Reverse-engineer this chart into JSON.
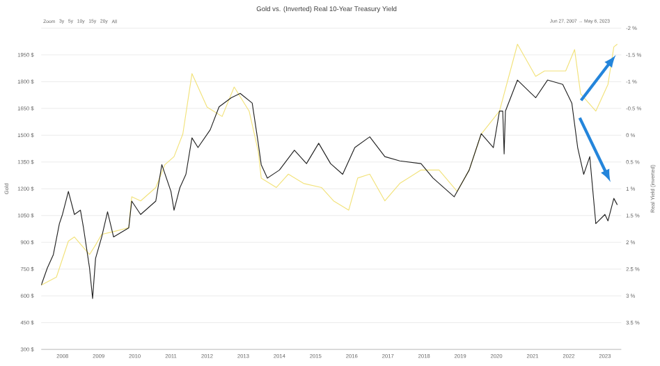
{
  "chart_data": {
    "type": "line",
    "title": "Gold vs. (Inverted) Real 10-Year Treasury Yield",
    "annotations": [
      "Zoom",
      "3y",
      "5y",
      "10y",
      "15y",
      "20y",
      "All",
      "Jun 27, 2007 → May 6, 2023"
    ],
    "ylabel": "Gold",
    "y2label": "Real Yield (inverted)",
    "xlim": [
      "2007-06",
      "2023-06-15"
    ],
    "xticks": [
      "2008",
      "2009",
      "2010",
      "2011",
      "2012",
      "2013",
      "2014",
      "2015",
      "2016",
      "2017",
      "2018",
      "2019",
      "2020",
      "2021",
      "2022",
      "2023"
    ],
    "ylim": [
      300,
      2100
    ],
    "yticks": [
      {
        "value": 300,
        "label": "300 $"
      },
      {
        "value": 450,
        "label": "450 $"
      },
      {
        "value": 600,
        "label": "600 $"
      },
      {
        "value": 750,
        "label": "750 $"
      },
      {
        "value": 900,
        "label": "900 $"
      },
      {
        "value": 1050,
        "label": "1050 $"
      },
      {
        "value": 1200,
        "label": "1200 $"
      },
      {
        "value": 1350,
        "label": "1350 $"
      },
      {
        "value": 1500,
        "label": "1500 $"
      },
      {
        "value": 1650,
        "label": "1650 $"
      },
      {
        "value": 1800,
        "label": "1800 $"
      },
      {
        "value": 1950,
        "label": "1950 $"
      },
      {
        "value": 2100,
        "label": null
      }
    ],
    "y2lim": [
      4,
      -2
    ],
    "y2ticks": [
      {
        "value": -2,
        "label": "-2 %"
      },
      {
        "value": -1.5,
        "label": "-1.5 %"
      },
      {
        "value": -1,
        "label": "-1 %"
      },
      {
        "value": -0.5,
        "label": "-0.5 %"
      },
      {
        "value": 0,
        "label": "0 %"
      },
      {
        "value": 0.5,
        "label": "0.5 %"
      },
      {
        "value": 1,
        "label": "1 %"
      },
      {
        "value": 1.5,
        "label": "1.5 %"
      },
      {
        "value": 2,
        "label": "2 %"
      },
      {
        "value": 2.5,
        "label": "2.5 %"
      },
      {
        "value": 3,
        "label": "3 %"
      },
      {
        "value": 3.5,
        "label": "3.5 %"
      }
    ],
    "grid": "y",
    "marker": "none",
    "line_style": "solid",
    "series": [
      {
        "color": "#f2e27a",
        "axis": "y",
        "x": [
          "2007-06",
          "2007-11",
          "2008-03",
          "2008-05",
          "2008-08",
          "2008-10",
          "2008-12",
          "2009-02",
          "2009-06",
          "2009-11",
          "2009-12",
          "2010-03",
          "2010-08",
          "2010-11",
          "2011-02",
          "2011-05",
          "2011-08",
          "2011-11",
          "2012-01",
          "2012-06",
          "2012-10",
          "2013-03",
          "2013-06",
          "2013-07",
          "2013-12",
          "2014-04",
          "2014-09",
          "2015-03",
          "2015-07",
          "2015-12",
          "2016-03",
          "2016-07",
          "2016-12",
          "2017-05",
          "2017-12",
          "2018-06",
          "2018-12",
          "2019-04",
          "2019-08",
          "2020-02",
          "2020-08",
          "2021-02",
          "2021-05",
          "2021-12",
          "2022-03",
          "2022-05",
          "2022-10",
          "2023-02",
          "2023-04",
          "2023-05-06"
        ],
        "values": [
          660,
          705,
          907,
          930,
          870,
          832,
          885,
          945,
          960,
          982,
          1155,
          1132,
          1207,
          1335,
          1380,
          1507,
          1845,
          1732,
          1657,
          1605,
          1770,
          1635,
          1410,
          1260,
          1207,
          1282,
          1230,
          1207,
          1132,
          1080,
          1260,
          1282,
          1132,
          1230,
          1305,
          1305,
          1185,
          1305,
          1507,
          1635,
          2010,
          1830,
          1860,
          1860,
          1980,
          1732,
          1635,
          1785,
          1995,
          2010
        ]
      },
      {
        "color": "#222222",
        "axis": "y2",
        "x": [
          "2007-06",
          "2007-08",
          "2007-10",
          "2007-12",
          "2008-01",
          "2008-03",
          "2008-05",
          "2008-07",
          "2008-08",
          "2008-10",
          "2008-11",
          "2008-12",
          "2009-02",
          "2009-04",
          "2009-06",
          "2009-11",
          "2009-12",
          "2010-03",
          "2010-08",
          "2010-10",
          "2011-01",
          "2011-02",
          "2011-04",
          "2011-06",
          "2011-08",
          "2011-10",
          "2012-02",
          "2012-05",
          "2012-09",
          "2012-12",
          "2013-04",
          "2013-06",
          "2013-07",
          "2013-09",
          "2014-01",
          "2014-06",
          "2014-10",
          "2015-02",
          "2015-06",
          "2015-10",
          "2016-02",
          "2016-07",
          "2016-12",
          "2017-05",
          "2017-12",
          "2018-04",
          "2018-11",
          "2019-04",
          "2019-08",
          "2019-12",
          "2020-02",
          "2020-03-05",
          "2020-03-19",
          "2020-04",
          "2020-08",
          "2021-02",
          "2021-06",
          "2021-11",
          "2022-02",
          "2022-04",
          "2022-06",
          "2022-08",
          "2022-10",
          "2023-01",
          "2023-02",
          "2023-04",
          "2023-05-06"
        ],
        "values": [
          2.8,
          2.48,
          2.23,
          1.65,
          1.48,
          1.05,
          1.48,
          1.4,
          1.73,
          2.48,
          3.05,
          2.3,
          1.9,
          1.43,
          1.9,
          1.73,
          1.23,
          1.48,
          1.23,
          0.55,
          1.05,
          1.4,
          0.98,
          0.73,
          0.05,
          0.23,
          -0.1,
          -0.53,
          -0.7,
          -0.78,
          -0.6,
          0.15,
          0.55,
          0.8,
          0.65,
          0.28,
          0.53,
          0.15,
          0.53,
          0.73,
          0.23,
          0.03,
          0.4,
          0.48,
          0.53,
          0.8,
          1.15,
          0.65,
          -0.03,
          0.23,
          -0.45,
          -0.45,
          0.35,
          -0.45,
          -1.03,
          -0.7,
          -1.03,
          -0.95,
          -0.6,
          0.23,
          0.73,
          0.4,
          1.65,
          1.48,
          1.6,
          1.18,
          1.3
        ]
      }
    ]
  }
}
